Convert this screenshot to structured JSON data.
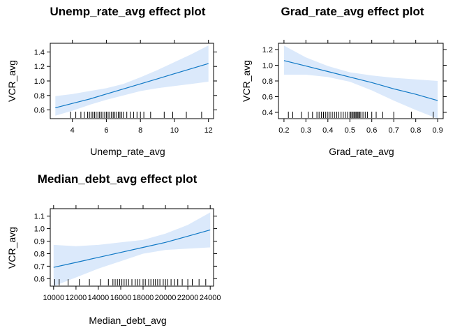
{
  "chart_data": [
    {
      "type": "line",
      "title": "Unemp_rate_avg effect plot",
      "xlabel": "Unemp_rate_avg",
      "ylabel": "VCR_avg",
      "xlim": [
        2.7,
        12.3
      ],
      "ylim": [
        0.48,
        1.52
      ],
      "x_ticks": [
        4,
        6,
        8,
        10,
        12
      ],
      "x_tick_labels": [
        "4",
        "6",
        "8",
        "10",
        "12"
      ],
      "y_ticks": [
        0.6,
        0.8,
        1.0,
        1.2,
        1.4
      ],
      "y_tick_labels": [
        "0.6",
        "0.8",
        "1.0",
        "1.2",
        "1.4"
      ],
      "fit": {
        "x": [
          3,
          4,
          5,
          6,
          7,
          8,
          9,
          10,
          11,
          12
        ],
        "y": [
          0.63,
          0.69,
          0.75,
          0.82,
          0.89,
          0.96,
          1.03,
          1.1,
          1.17,
          1.24
        ]
      },
      "ci_lower": [
        0.52,
        0.59,
        0.67,
        0.74,
        0.8,
        0.86,
        0.9,
        0.93,
        0.96,
        0.99
      ],
      "ci_upper": [
        0.79,
        0.82,
        0.86,
        0.9,
        0.96,
        1.05,
        1.15,
        1.26,
        1.37,
        1.49
      ],
      "rug": [
        3.9,
        4.2,
        4.5,
        4.7,
        4.9,
        5.0,
        5.1,
        5.2,
        5.3,
        5.4,
        5.5,
        5.6,
        5.7,
        5.8,
        5.9,
        6.0,
        6.1,
        6.2,
        6.3,
        6.4,
        6.5,
        6.6,
        6.7,
        6.8,
        6.9,
        7.0,
        7.2,
        7.4,
        7.6,
        7.8,
        8.0,
        8.2,
        8.6,
        9.4,
        9.9,
        10.7,
        11.6
      ]
    },
    {
      "type": "line",
      "title": "Grad_rate_avg effect plot",
      "xlabel": "Grad_rate_avg",
      "ylabel": "VCR_avg",
      "xlim": [
        0.175,
        0.925
      ],
      "ylim": [
        0.32,
        1.28
      ],
      "x_ticks": [
        0.2,
        0.3,
        0.4,
        0.5,
        0.6,
        0.7,
        0.8,
        0.9
      ],
      "x_tick_labels": [
        "0.2",
        "0.3",
        "0.4",
        "0.5",
        "0.6",
        "0.7",
        "0.8",
        "0.9"
      ],
      "y_ticks": [
        0.4,
        0.6,
        0.8,
        1.0,
        1.2
      ],
      "y_tick_labels": [
        "0.4",
        "0.6",
        "0.8",
        "1.0",
        "1.2"
      ],
      "fit": {
        "x": [
          0.2,
          0.3,
          0.4,
          0.5,
          0.6,
          0.7,
          0.8,
          0.9
        ],
        "y": [
          1.06,
          0.99,
          0.92,
          0.85,
          0.78,
          0.7,
          0.63,
          0.55
        ]
      },
      "ci_lower": [
        0.88,
        0.88,
        0.85,
        0.79,
        0.68,
        0.55,
        0.43,
        0.31
      ],
      "ci_upper": [
        1.25,
        1.1,
        0.99,
        0.91,
        0.87,
        0.84,
        0.82,
        0.8
      ],
      "rug": [
        0.22,
        0.24,
        0.28,
        0.31,
        0.33,
        0.35,
        0.36,
        0.37,
        0.38,
        0.39,
        0.4,
        0.41,
        0.42,
        0.43,
        0.44,
        0.45,
        0.46,
        0.47,
        0.48,
        0.49,
        0.5,
        0.505,
        0.51,
        0.515,
        0.52,
        0.525,
        0.53,
        0.535,
        0.54,
        0.545,
        0.55,
        0.56,
        0.57,
        0.58,
        0.6,
        0.62,
        0.65,
        0.7,
        0.78,
        0.88
      ]
    },
    {
      "type": "line",
      "title": "Median_debt_avg effect plot",
      "xlabel": "Median_debt_avg",
      "ylabel": "VCR_avg",
      "xlim": [
        9700,
        24300
      ],
      "ylim": [
        0.54,
        1.16
      ],
      "x_ticks": [
        10000,
        12000,
        14000,
        16000,
        18000,
        20000,
        22000,
        24000
      ],
      "x_tick_labels": [
        "10000",
        "12000",
        "14000",
        "16000",
        "18000",
        "20000",
        "22000",
        "24000"
      ],
      "y_ticks": [
        0.6,
        0.7,
        0.8,
        0.9,
        1.0,
        1.1
      ],
      "y_tick_labels": [
        "0.6",
        "0.7",
        "0.8",
        "0.9",
        "1.0",
        "1.1"
      ],
      "fit": {
        "x": [
          10000,
          12000,
          14000,
          16000,
          18000,
          20000,
          22000,
          24000
        ],
        "y": [
          0.69,
          0.73,
          0.77,
          0.81,
          0.85,
          0.89,
          0.94,
          0.99
        ]
      },
      "ci_lower": [
        0.53,
        0.61,
        0.68,
        0.74,
        0.8,
        0.83,
        0.84,
        0.85
      ],
      "ci_upper": [
        0.87,
        0.86,
        0.87,
        0.89,
        0.91,
        0.96,
        1.03,
        1.13
      ],
      "rug": [
        10100,
        10500,
        11300,
        12300,
        13200,
        14200,
        14900,
        15300,
        15500,
        15700,
        15900,
        16100,
        16300,
        16500,
        16700,
        17000,
        17300,
        17500,
        17700,
        18000,
        18200,
        18500,
        18700,
        18900,
        19100,
        19300,
        19500,
        19800,
        20000,
        20200,
        20500,
        20800,
        21100,
        21500,
        22000,
        22400,
        23000,
        23600
      ]
    }
  ],
  "colors": {
    "band": "#dbe9fb",
    "line": "#0f78c5",
    "axis": "#000000"
  }
}
